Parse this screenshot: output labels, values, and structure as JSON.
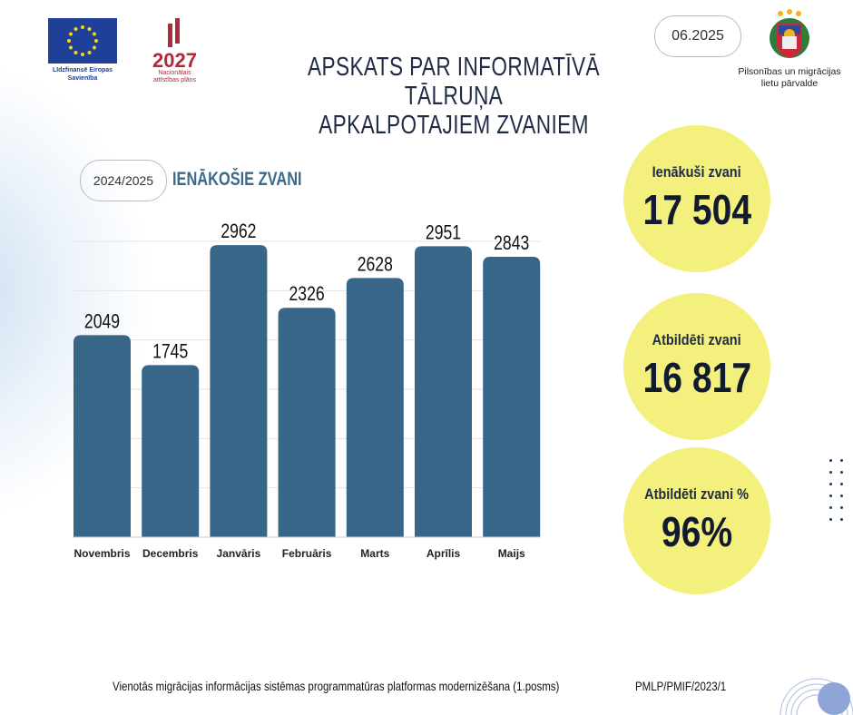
{
  "header": {
    "title_line1": "APSKATS PAR INFORMATĪVĀ TĀLRUŅA",
    "title_line2": "APKALPOTAJIEM ZVANIEM",
    "date": "06.2025",
    "eu_logo_text": "Līdzfinansē Eiropas Savienība",
    "nap_logo_number": "2027",
    "nap_logo_text": "Nacionālais attīstības plāns",
    "pmlp_text_line1": "Pilsonības un migrācijas",
    "pmlp_text_line2": "lietu pārvalde"
  },
  "chart_section": {
    "period": "2024/2025",
    "heading": "IENĀKOŠIE ZVANI"
  },
  "chart_data": {
    "type": "bar",
    "title": "IENĀKOŠIE ZVANI",
    "categories": [
      "Novembris",
      "Decembris",
      "Janvāris",
      "Februāris",
      "Marts",
      "Aprīlis",
      "Maijs"
    ],
    "values": [
      2049,
      1745,
      2962,
      2326,
      2628,
      2951,
      2843
    ],
    "ylim": [
      0,
      3000
    ],
    "grid": true,
    "gridStep": 500,
    "color": "#376688"
  },
  "stats": [
    {
      "label": "Ienākuši zvani",
      "value": "17 504"
    },
    {
      "label": "Atbildēti zvani",
      "value": "16 817"
    },
    {
      "label": "Atbildēti zvani %",
      "value": "96%"
    }
  ],
  "footer": {
    "project": "Vienotās migrācijas informācijas sistēmas programmatūras platformas modernizēšana (1.posms)",
    "code": "PMLP/PMIF/2023/1"
  },
  "colors": {
    "bar": "#376688",
    "circle": "#f4f07e",
    "title": "#1f2b44"
  }
}
